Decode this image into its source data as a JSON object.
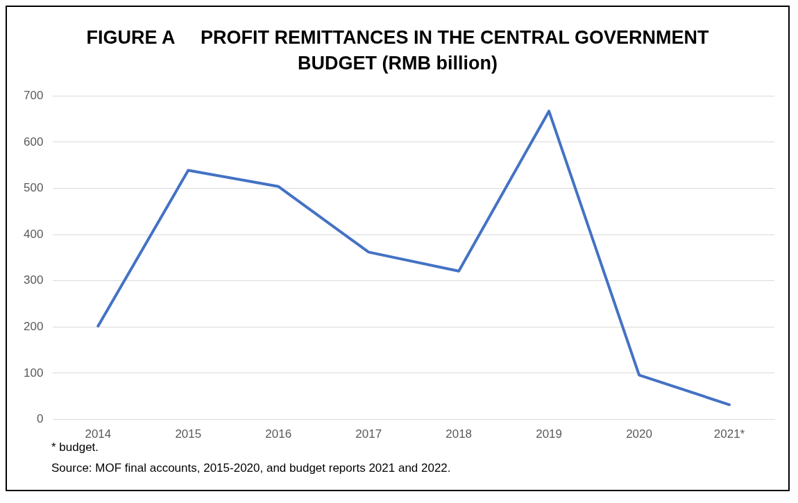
{
  "chart_data": {
    "type": "line",
    "title": "FIGURE A     PROFIT REMITTANCES IN THE CENTRAL GOVERNMENT BUDGET (RMB billion)",
    "categories": [
      "2014",
      "2015",
      "2016",
      "2017",
      "2018",
      "2019",
      "2020",
      "2021*"
    ],
    "series": [
      {
        "color": "#4472c4",
        "values": [
          202,
          539,
          504,
          362,
          321,
          667,
          96,
          32
        ]
      }
    ],
    "ylim": [
      0,
      700
    ],
    "yticks": [
      0,
      100,
      200,
      300,
      400,
      500,
      600,
      700
    ],
    "grid": "y",
    "legend": false,
    "marker": "none",
    "line_style": "solid",
    "annotations": [
      "* budget.",
      "Source:  MOF final accounts, 2015-2020, and budget reports 2021 and 2022."
    ]
  }
}
